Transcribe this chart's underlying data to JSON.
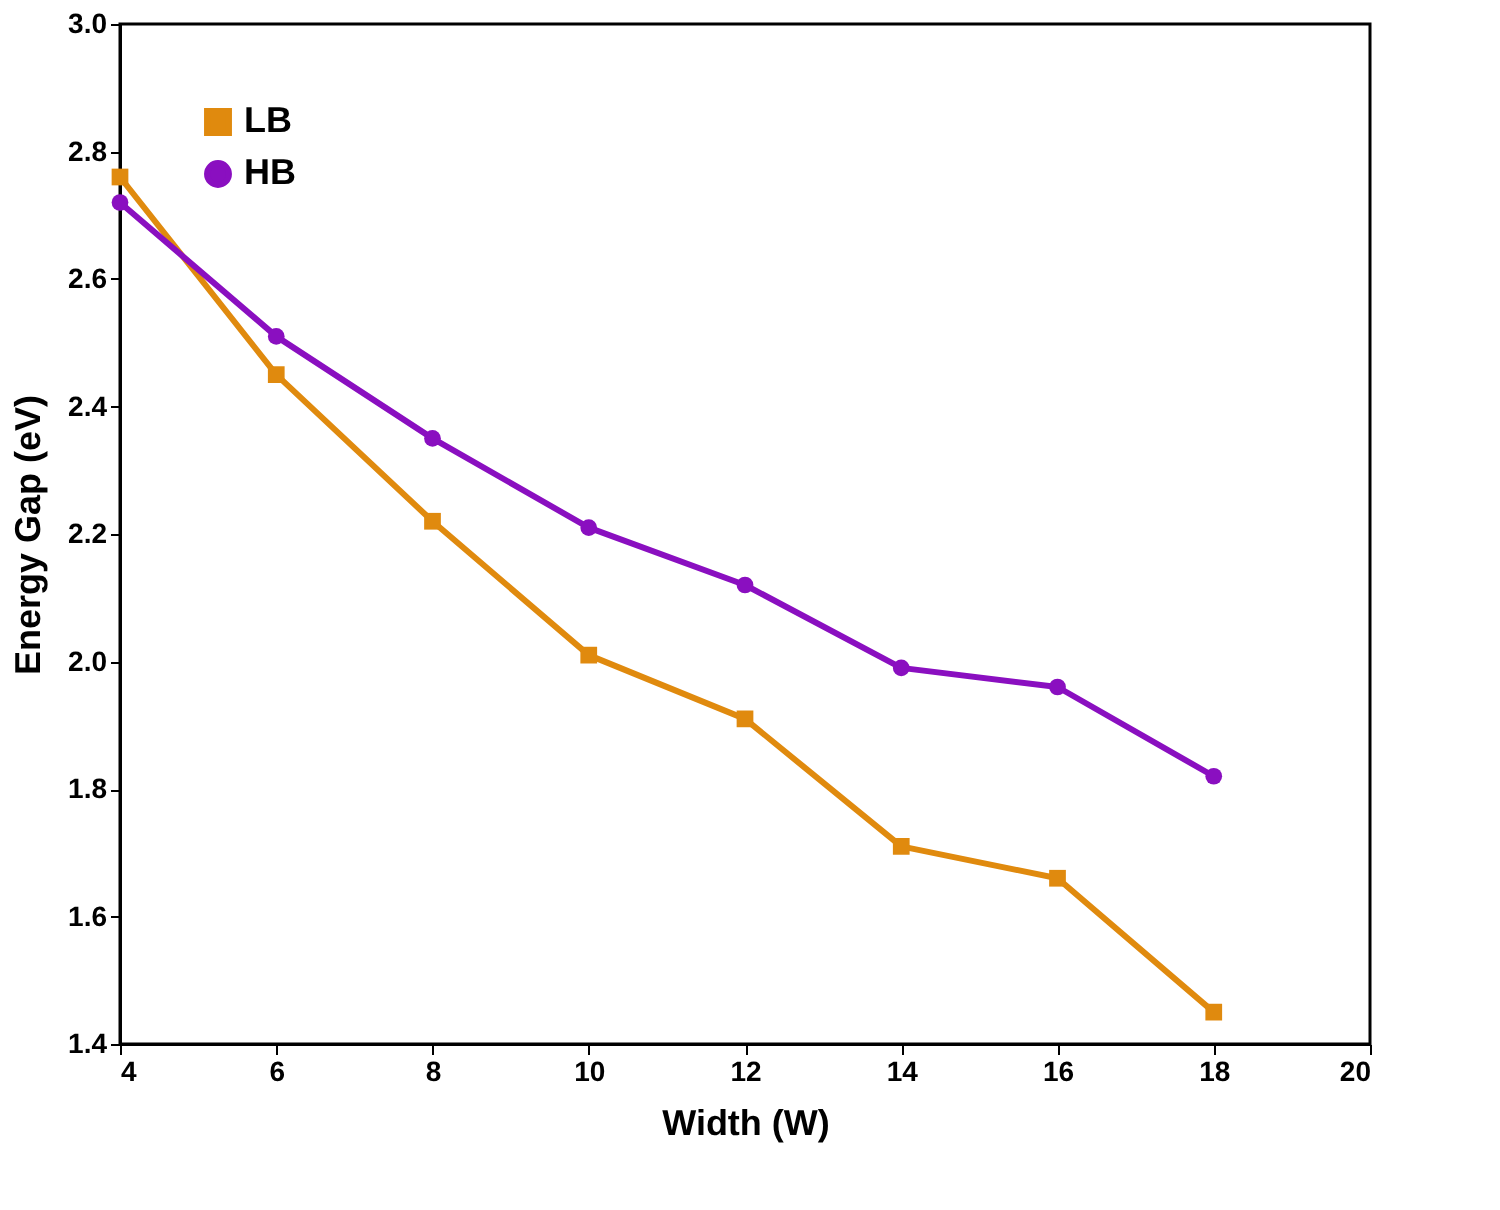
{
  "chart_data": {
    "type": "line",
    "xlabel": "Width (W)",
    "ylabel": "Energy Gap (eV)",
    "xlim": [
      4,
      20
    ],
    "xticks": [
      4,
      6,
      8,
      10,
      12,
      14,
      16,
      18,
      20
    ],
    "ylim": [
      1.4,
      3.0
    ],
    "yticks": [
      1.4,
      1.6,
      1.8,
      {
        "value": 2,
        "label": "2.0"
      },
      2.2,
      2.4,
      2.6,
      2.8,
      {
        "value": 3,
        "label": "3.0"
      }
    ],
    "x": [
      4,
      6,
      8,
      10,
      12,
      14,
      16,
      18
    ],
    "series": [
      {
        "name": "LB",
        "color": "#e08a0e",
        "marker": "square",
        "values": [
          2.76,
          2.45,
          2.22,
          2.01,
          1.91,
          1.71,
          1.66,
          1.45
        ]
      },
      {
        "name": "HB",
        "color": "#8a0fc0",
        "marker": "circle",
        "values": [
          2.72,
          2.51,
          2.35,
          2.21,
          2.12,
          1.99,
          1.96,
          1.82
        ]
      }
    ],
    "legend": "top left",
    "grid": false,
    "line_style": "solid"
  }
}
